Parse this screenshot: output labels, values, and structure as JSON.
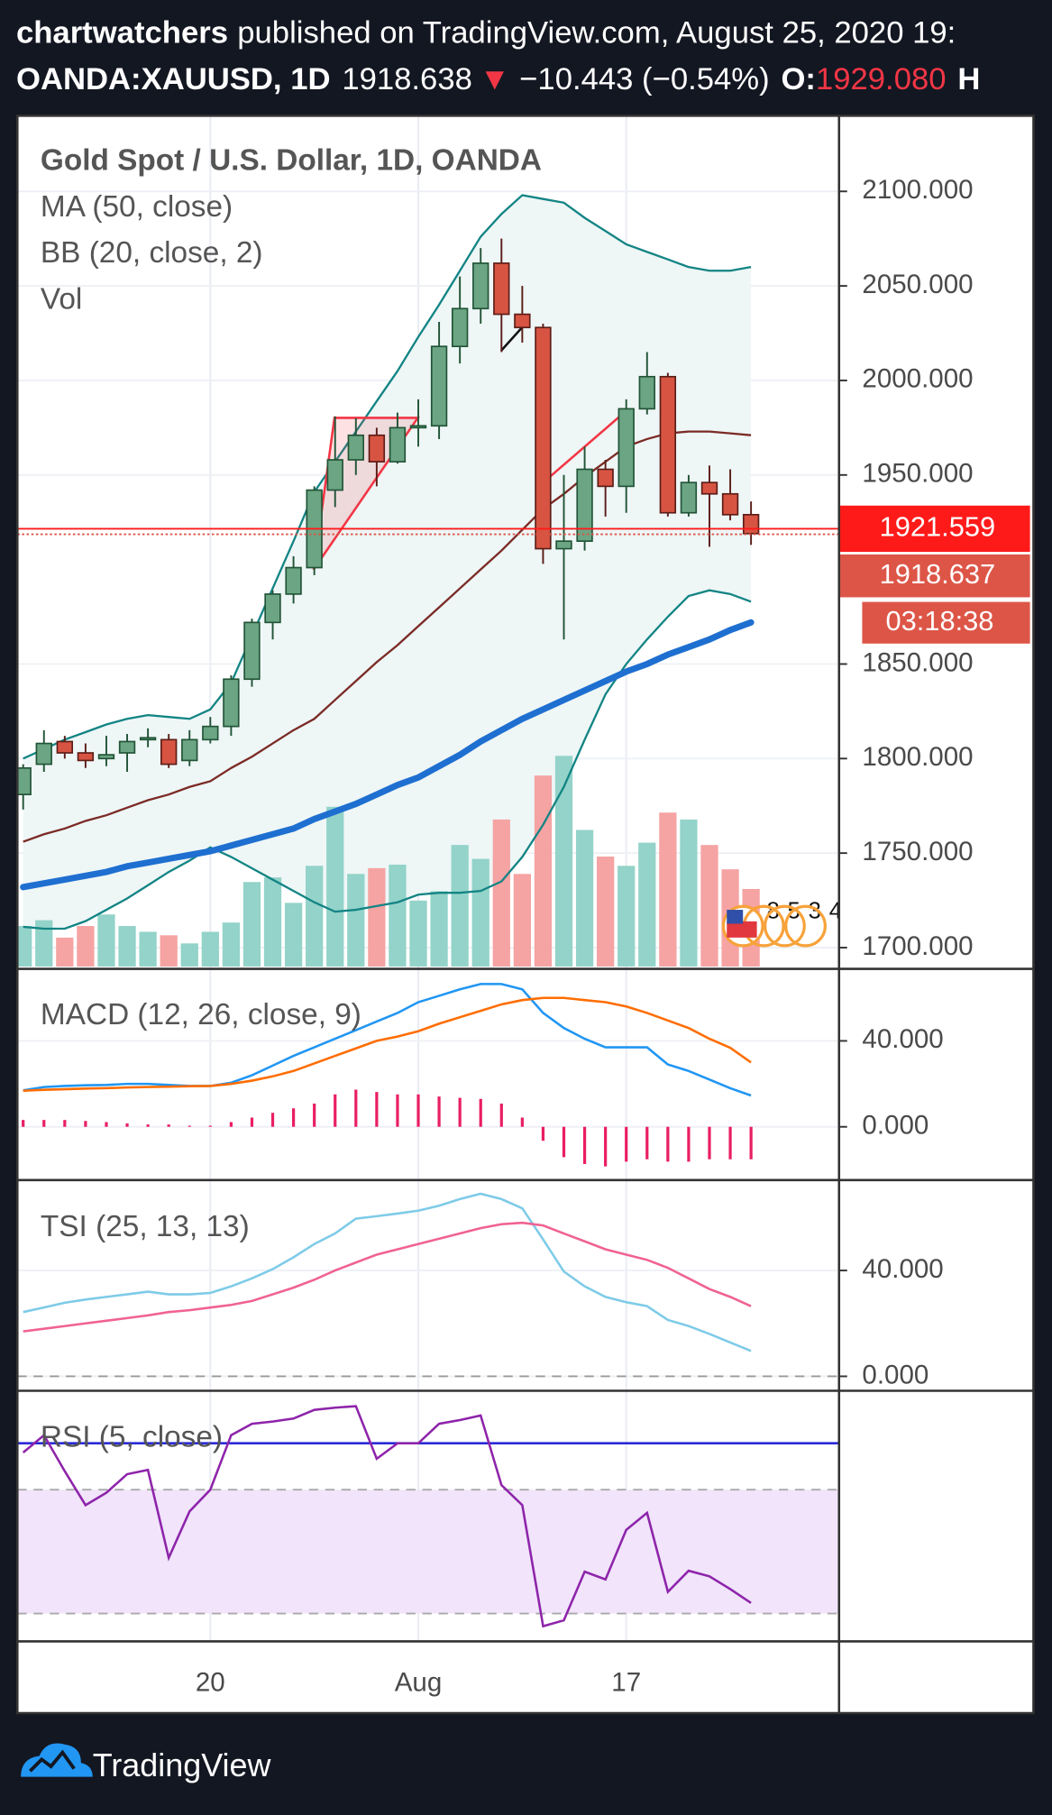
{
  "header": {
    "author": "chartwatchers",
    "published": "published on TradingView.com, August 25, 2020 19:",
    "symbol": "OANDA:XAUUSD, 1D",
    "last": "1918.638",
    "arrow": "▼",
    "change": "−10.443 (−0.54%)",
    "open_label": "O:",
    "open": "1929.080",
    "high_label": "H"
  },
  "footer": {
    "brand": "TradingView"
  },
  "chart_data": [
    {
      "type": "candlestick",
      "title": "Gold Spot / U.S. Dollar, 1D, OANDA",
      "categories": [
        null,
        null,
        null,
        null,
        null,
        null,
        null,
        null,
        null,
        "20",
        null,
        null,
        null,
        null,
        null,
        null,
        null,
        null,
        null,
        "Aug",
        null,
        null,
        null,
        null,
        null,
        null,
        null,
        null,
        null,
        "17",
        null,
        null,
        null,
        null,
        null,
        null
      ],
      "open": [
        1781,
        1797,
        1809,
        1803,
        1800,
        1803,
        1810,
        1810,
        1799,
        1810,
        1817,
        1842,
        1872,
        1887,
        1901,
        1942,
        1958,
        1971,
        1957,
        1975,
        1976,
        2018,
        2038,
        2062,
        2035,
        2028,
        1911,
        1915,
        1953,
        1944,
        1985,
        2002,
        1930,
        1946,
        1940,
        1929
      ],
      "high": [
        1797,
        1815,
        1812,
        1808,
        1812,
        1813,
        1816,
        1813,
        1815,
        1822,
        1844,
        1874,
        1889,
        1907,
        1944,
        1981,
        1980,
        1975,
        1983,
        1990,
        2031,
        2055,
        2070,
        2075,
        2050,
        2030,
        1950,
        1965,
        1958,
        1990,
        2015,
        2004,
        1950,
        1955,
        1953,
        1936
      ],
      "low": [
        1773,
        1793,
        1800,
        1795,
        1796,
        1793,
        1806,
        1795,
        1796,
        1808,
        1812,
        1838,
        1863,
        1882,
        1897,
        1933,
        1950,
        1944,
        1956,
        1965,
        1969,
        2009,
        2030,
        2015,
        2020,
        1903,
        1863,
        1910,
        1928,
        1930,
        1982,
        1928,
        1928,
        1912,
        1926,
        1913
      ],
      "close": [
        1795,
        1808,
        1803,
        1799,
        1802,
        1809,
        1811,
        1797,
        1810,
        1817,
        1842,
        1872,
        1887,
        1901,
        1942,
        1958,
        1971,
        1957,
        1975,
        1976,
        2018,
        2038,
        2062,
        2035,
        2028,
        1911,
        1915,
        1953,
        1944,
        1985,
        2002,
        1930,
        1946,
        1940,
        1929,
        1919
      ],
      "up_color": "#6ba583",
      "down_color": "#d75442",
      "up_border": "#225437",
      "down_border": "#5c1d17",
      "indicators": [
        {
          "name": "MA (50, close)",
          "color": "#1e6fd0",
          "values": [
            1732,
            1734,
            1736,
            1738,
            1740,
            1743,
            1745,
            1747,
            1749,
            1751,
            1754,
            1757,
            1760,
            1763,
            1768,
            1772,
            1776,
            1781,
            1786,
            1790,
            1796,
            1802,
            1809,
            1815,
            1821,
            1826,
            1831,
            1836,
            1841,
            1846,
            1850,
            1855,
            1859,
            1863,
            1868,
            1872
          ]
        },
        {
          "name": "BB (20, close, 2)",
          "color": "#138484",
          "basis_color": "#7b2a25",
          "fill": "#eef6f6",
          "upper": [
            1800,
            1805,
            1810,
            1814,
            1818,
            1821,
            1823,
            1822,
            1821,
            1826,
            1840,
            1865,
            1890,
            1915,
            1941,
            1957,
            1973,
            1989,
            2005,
            2023,
            2040,
            2058,
            2076,
            2088,
            2098,
            2096,
            2094,
            2086,
            2079,
            2072,
            2068,
            2064,
            2060,
            2058,
            2058,
            2060
          ],
          "basis": [
            1756,
            1760,
            1763,
            1767,
            1770,
            1774,
            1778,
            1781,
            1785,
            1788,
            1795,
            1801,
            1808,
            1815,
            1821,
            1831,
            1841,
            1851,
            1860,
            1870,
            1880,
            1890,
            1900,
            1910,
            1921,
            1932,
            1940,
            1949,
            1957,
            1965,
            1969,
            1972,
            1973,
            1973,
            1972,
            1971
          ],
          "lower": [
            1711,
            1710,
            1710,
            1714,
            1720,
            1726,
            1733,
            1740,
            1746,
            1753,
            1748,
            1742,
            1736,
            1730,
            1724,
            1719,
            1720,
            1722,
            1724,
            1728,
            1729,
            1729,
            1730,
            1735,
            1748,
            1765,
            1785,
            1810,
            1834,
            1850,
            1863,
            1875,
            1886,
            1889,
            1887,
            1883
          ]
        },
        {
          "name": "Vol",
          "up_color": "#93d3c9",
          "down_color": "#f5a3a3",
          "vlim": [
            0,
            735
          ],
          "values": [
            35,
            40,
            25,
            35,
            45,
            35,
            30,
            27,
            20,
            30,
            38,
            73,
            77,
            55,
            87,
            138,
            80,
            85,
            88,
            57,
            65,
            105,
            93,
            127,
            80,
            165,
            182,
            118,
            95,
            87,
            107,
            133,
            127,
            105,
            84,
            67
          ]
        }
      ],
      "ylim": [
        1690,
        2140
      ],
      "yticks": [
        {
          "value": 1700,
          "label": "1700.000"
        },
        {
          "value": 1750,
          "label": "1750.000"
        },
        {
          "value": 1800,
          "label": "1800.000"
        },
        {
          "value": 1850,
          "label": "1850.000"
        },
        {
          "value": 1950,
          "label": "1950.000"
        },
        {
          "value": 2000,
          "label": "2000.000"
        },
        {
          "value": 2050,
          "label": "2050.000"
        },
        {
          "value": 2100,
          "label": "2100.000"
        }
      ],
      "grid": true,
      "price_lines": [
        {
          "value": 1921.559,
          "label": "1921.559",
          "color": "#ff1a1a"
        },
        {
          "value": 1918.637,
          "label": "1918.637",
          "color": "#dd5547"
        }
      ],
      "countdown": "03:18:38",
      "events": [
        "8",
        "5",
        "3",
        "4"
      ]
    },
    {
      "type": "macd",
      "title": "MACD (12, 26, close, 9)",
      "ylim": [
        -24,
        73
      ],
      "yticks": [
        {
          "value": 0,
          "label": "0.000"
        },
        {
          "value": 40,
          "label": "40.000"
        }
      ],
      "series": [
        {
          "color": "#2196f3",
          "values": [
            17,
            18.5,
            19,
            19.3,
            19.5,
            20,
            20,
            19.5,
            19,
            19,
            20.5,
            24,
            28.5,
            33,
            37,
            41,
            45,
            49,
            53,
            58,
            61,
            64,
            66.5,
            66.5,
            64,
            53,
            46,
            41,
            37,
            37,
            37,
            29,
            26,
            22,
            18,
            14.6
          ]
        },
        {
          "color": "#ff6d00",
          "values": [
            16.8,
            17.2,
            17.5,
            17.8,
            18,
            18.3,
            18.5,
            18.7,
            18.9,
            19,
            20,
            21.5,
            23.5,
            26,
            29.5,
            33,
            36.5,
            40,
            42,
            44.5,
            48,
            51,
            54,
            57,
            59,
            60,
            60,
            59,
            58,
            56,
            53,
            49.5,
            46,
            41,
            36.8,
            30
          ]
        }
      ],
      "histogram": {
        "color": "#e91e63",
        "values": [
          3.2,
          3.2,
          3.2,
          2.7,
          2.2,
          1.6,
          1.1,
          1.1,
          0.5,
          0.5,
          2.2,
          4.3,
          6.5,
          8.6,
          10.8,
          15.1,
          17.3,
          16.2,
          15.1,
          15.1,
          14.1,
          13.5,
          13,
          10.8,
          4.3,
          -6.5,
          -14.1,
          -17.3,
          -18.4,
          -16.2,
          -15.1,
          -16.2,
          -16.2,
          -15.1,
          -15.1,
          -15.1
        ]
      }
    },
    {
      "type": "tsi",
      "title": "TSI (25, 13, 13)",
      "ylim": [
        -4.8,
        73.5
      ],
      "yticks": [
        {
          "value": 0,
          "label": "0.000"
        },
        {
          "value": 40,
          "label": "40.000"
        }
      ],
      "zero_line": "dashed",
      "series": [
        {
          "color": "#7ecbe8",
          "values": [
            24.3,
            26,
            27.8,
            29,
            30,
            31,
            32,
            31,
            31,
            31.5,
            34,
            37,
            40.5,
            45,
            50,
            54,
            59.6,
            60.5,
            61.5,
            62.6,
            64.5,
            67,
            69,
            67,
            63.5,
            51.7,
            39.6,
            34,
            30,
            28,
            26.5,
            21.3,
            19,
            16,
            12.8,
            9.6
          ]
        },
        {
          "color": "#f06292",
          "values": [
            17,
            18,
            19,
            20,
            21,
            22,
            23,
            24.3,
            25,
            26,
            27,
            28.5,
            31,
            33.5,
            36.5,
            40,
            43,
            46,
            48,
            50,
            52,
            54,
            56,
            57.5,
            58,
            57,
            54,
            51,
            48,
            46,
            44,
            41,
            37,
            33,
            30,
            26.5
          ]
        }
      ]
    },
    {
      "type": "rsi",
      "title": "RSI (5, close)",
      "ylim": [
        21,
        101.4
      ],
      "bands": [
        30,
        70
      ],
      "band_color": "#f1e4fb",
      "hline": 85,
      "hline_color": "#2a2ad6",
      "series": [
        {
          "color": "#8e24aa",
          "values": [
            82,
            87.6,
            76,
            65,
            69,
            75,
            76.4,
            48,
            63,
            70,
            87.6,
            91.3,
            92,
            93,
            95.8,
            96.5,
            97,
            80,
            85,
            85,
            91.3,
            92.5,
            94,
            71.5,
            65,
            25.9,
            27.8,
            43.5,
            41,
            57,
            62.5,
            37,
            43.8,
            42,
            37.9,
            33.4
          ]
        }
      ]
    }
  ]
}
